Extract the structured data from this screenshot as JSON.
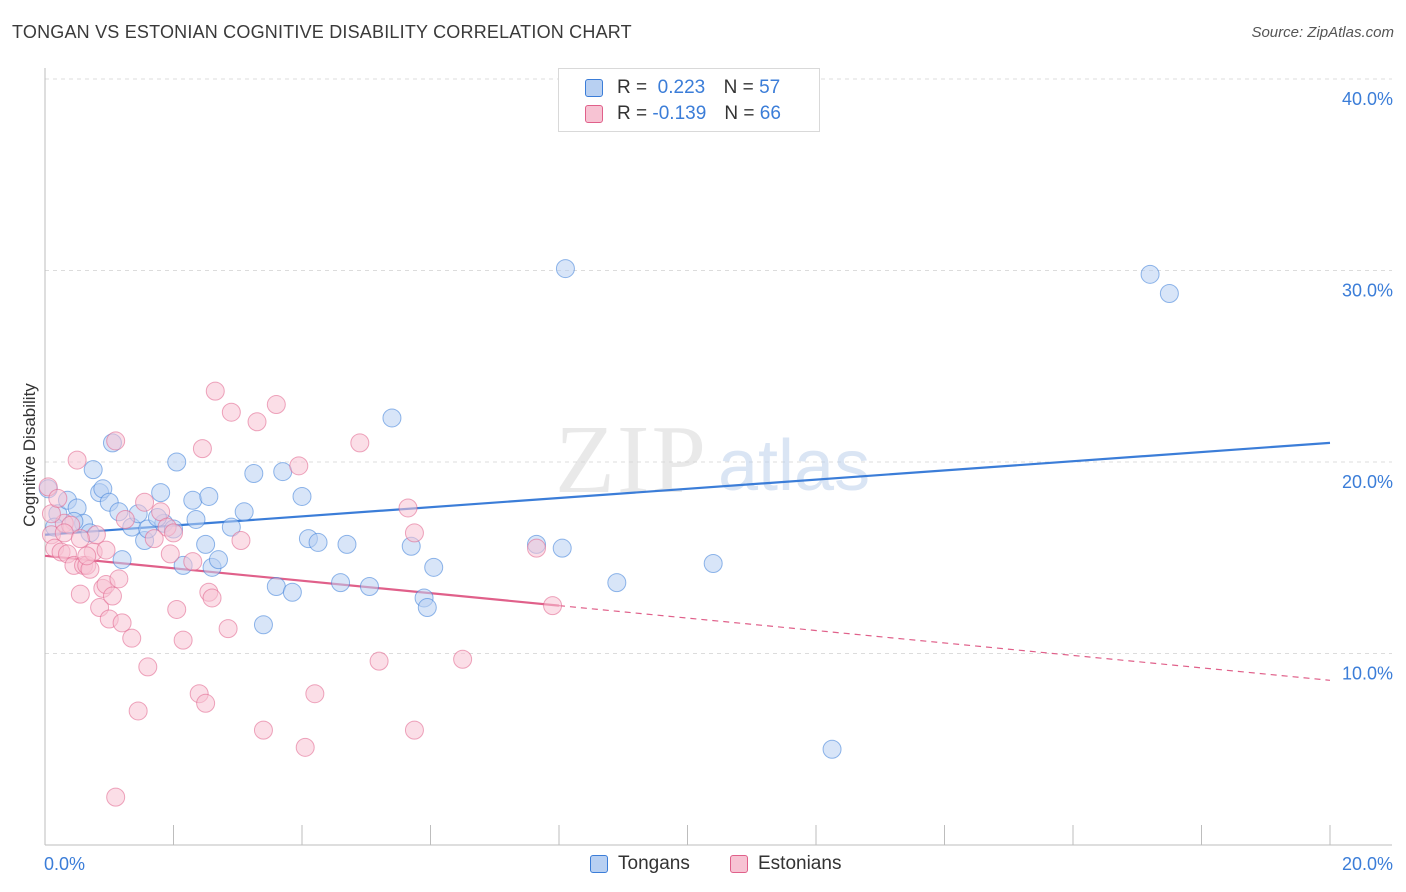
{
  "header": {
    "title": "TONGAN VS ESTONIAN COGNITIVE DISABILITY CORRELATION CHART",
    "source": "Source: ZipAtlas.com"
  },
  "watermark": {
    "zip": "ZIP",
    "atlas": "atlas"
  },
  "legend": {
    "r_label": "R =",
    "n_label": "N =",
    "rows": [
      {
        "r": "0.223",
        "n": "57",
        "color": "#3b7dd8",
        "fill": "#b8d0f2"
      },
      {
        "r": "-0.139",
        "n": "66",
        "color": "#e0608a",
        "fill": "#f7c3d3"
      }
    ]
  },
  "bottom_legend": [
    "Tongans",
    "Estonians"
  ],
  "chart_data": {
    "type": "scatter",
    "title": "TONGAN VS ESTONIAN COGNITIVE DISABILITY CORRELATION CHART",
    "xlabel": "",
    "ylabel": "Cognitive Disability",
    "xlim": [
      0,
      20
    ],
    "ylim": [
      0,
      40
    ],
    "x_tick_labels": [
      "0.0%",
      "20.0%"
    ],
    "y_ticks": [
      10,
      20,
      30,
      40
    ],
    "y_tick_labels": [
      "10.0%",
      "20.0%",
      "30.0%",
      "40.0%"
    ],
    "grid": true,
    "legend_position": "top-center",
    "series": [
      {
        "name": "Tongans",
        "color": "#3b7dd8",
        "fill": "#b8d0f2",
        "trend": {
          "x": [
            0,
            20
          ],
          "y": [
            16.2,
            21.0
          ],
          "dashed_from": null
        },
        "points": [
          [
            0.05,
            18.6
          ],
          [
            0.2,
            17.3
          ],
          [
            0.35,
            18.0
          ],
          [
            0.5,
            17.6
          ],
          [
            0.6,
            16.8
          ],
          [
            0.7,
            16.3
          ],
          [
            0.75,
            19.6
          ],
          [
            0.85,
            18.4
          ],
          [
            0.9,
            18.6
          ],
          [
            1.0,
            17.9
          ],
          [
            1.05,
            21.0
          ],
          [
            1.15,
            17.4
          ],
          [
            1.2,
            14.9
          ],
          [
            1.35,
            16.6
          ],
          [
            1.45,
            17.3
          ],
          [
            1.55,
            15.9
          ],
          [
            1.6,
            16.5
          ],
          [
            1.8,
            18.4
          ],
          [
            1.85,
            16.8
          ],
          [
            2.0,
            16.5
          ],
          [
            2.05,
            20.0
          ],
          [
            2.15,
            14.6
          ],
          [
            2.3,
            18.0
          ],
          [
            2.35,
            17.0
          ],
          [
            2.5,
            15.7
          ],
          [
            2.55,
            18.2
          ],
          [
            2.6,
            14.5
          ],
          [
            2.7,
            14.9
          ],
          [
            2.9,
            16.6
          ],
          [
            3.1,
            17.4
          ],
          [
            3.25,
            19.4
          ],
          [
            3.4,
            11.5
          ],
          [
            3.6,
            13.5
          ],
          [
            3.7,
            19.5
          ],
          [
            3.85,
            13.2
          ],
          [
            4.0,
            18.2
          ],
          [
            4.1,
            16.0
          ],
          [
            4.25,
            15.8
          ],
          [
            4.6,
            13.7
          ],
          [
            4.7,
            15.7
          ],
          [
            5.05,
            13.5
          ],
          [
            5.4,
            22.3
          ],
          [
            5.7,
            15.6
          ],
          [
            5.9,
            12.9
          ],
          [
            5.95,
            12.4
          ],
          [
            6.05,
            14.5
          ],
          [
            7.65,
            15.7
          ],
          [
            8.1,
            30.1
          ],
          [
            8.05,
            15.5
          ],
          [
            8.9,
            13.7
          ],
          [
            10.4,
            14.7
          ],
          [
            12.25,
            5.0
          ],
          [
            17.2,
            29.8
          ],
          [
            17.5,
            28.8
          ],
          [
            0.15,
            16.6
          ],
          [
            0.45,
            16.9
          ],
          [
            1.75,
            17.1
          ]
        ]
      },
      {
        "name": "Estonians",
        "color": "#e0608a",
        "fill": "#f7c3d3",
        "trend": {
          "x": [
            0,
            20
          ],
          "y": [
            15.1,
            8.6
          ],
          "dashed_from": 8.0
        },
        "points": [
          [
            0.05,
            18.7
          ],
          [
            0.1,
            16.2
          ],
          [
            0.15,
            15.5
          ],
          [
            0.25,
            15.3
          ],
          [
            0.3,
            16.8
          ],
          [
            0.35,
            15.2
          ],
          [
            0.45,
            14.6
          ],
          [
            0.5,
            20.1
          ],
          [
            0.55,
            13.1
          ],
          [
            0.6,
            14.6
          ],
          [
            0.65,
            14.6
          ],
          [
            0.7,
            14.4
          ],
          [
            0.75,
            15.3
          ],
          [
            0.8,
            16.2
          ],
          [
            0.85,
            12.4
          ],
          [
            0.9,
            13.4
          ],
          [
            0.95,
            13.6
          ],
          [
            1.0,
            11.8
          ],
          [
            1.05,
            13.0
          ],
          [
            1.1,
            21.1
          ],
          [
            1.15,
            13.9
          ],
          [
            1.2,
            11.6
          ],
          [
            1.35,
            10.8
          ],
          [
            1.45,
            7.0
          ],
          [
            1.55,
            17.9
          ],
          [
            1.6,
            9.3
          ],
          [
            1.8,
            17.4
          ],
          [
            1.9,
            16.6
          ],
          [
            1.95,
            15.2
          ],
          [
            2.05,
            12.3
          ],
          [
            2.15,
            10.7
          ],
          [
            2.3,
            14.8
          ],
          [
            2.4,
            7.9
          ],
          [
            2.45,
            20.7
          ],
          [
            2.5,
            7.4
          ],
          [
            2.55,
            13.2
          ],
          [
            2.6,
            12.9
          ],
          [
            2.65,
            23.7
          ],
          [
            2.85,
            11.3
          ],
          [
            2.9,
            22.6
          ],
          [
            3.05,
            15.9
          ],
          [
            3.3,
            22.1
          ],
          [
            3.4,
            6.0
          ],
          [
            3.6,
            23.0
          ],
          [
            3.95,
            19.8
          ],
          [
            4.05,
            5.1
          ],
          [
            4.2,
            7.9
          ],
          [
            4.9,
            21.0
          ],
          [
            5.2,
            9.6
          ],
          [
            5.65,
            17.6
          ],
          [
            5.75,
            16.3
          ],
          [
            5.75,
            6.0
          ],
          [
            6.5,
            9.7
          ],
          [
            7.65,
            15.5
          ],
          [
            7.9,
            12.5
          ],
          [
            1.1,
            2.5
          ],
          [
            0.1,
            17.3
          ],
          [
            0.4,
            16.7
          ],
          [
            0.2,
            18.1
          ],
          [
            1.25,
            17.0
          ],
          [
            0.65,
            15.1
          ],
          [
            1.7,
            16.0
          ],
          [
            2.0,
            16.3
          ],
          [
            0.95,
            15.4
          ],
          [
            0.3,
            16.3
          ],
          [
            0.55,
            16.0
          ]
        ]
      }
    ]
  }
}
